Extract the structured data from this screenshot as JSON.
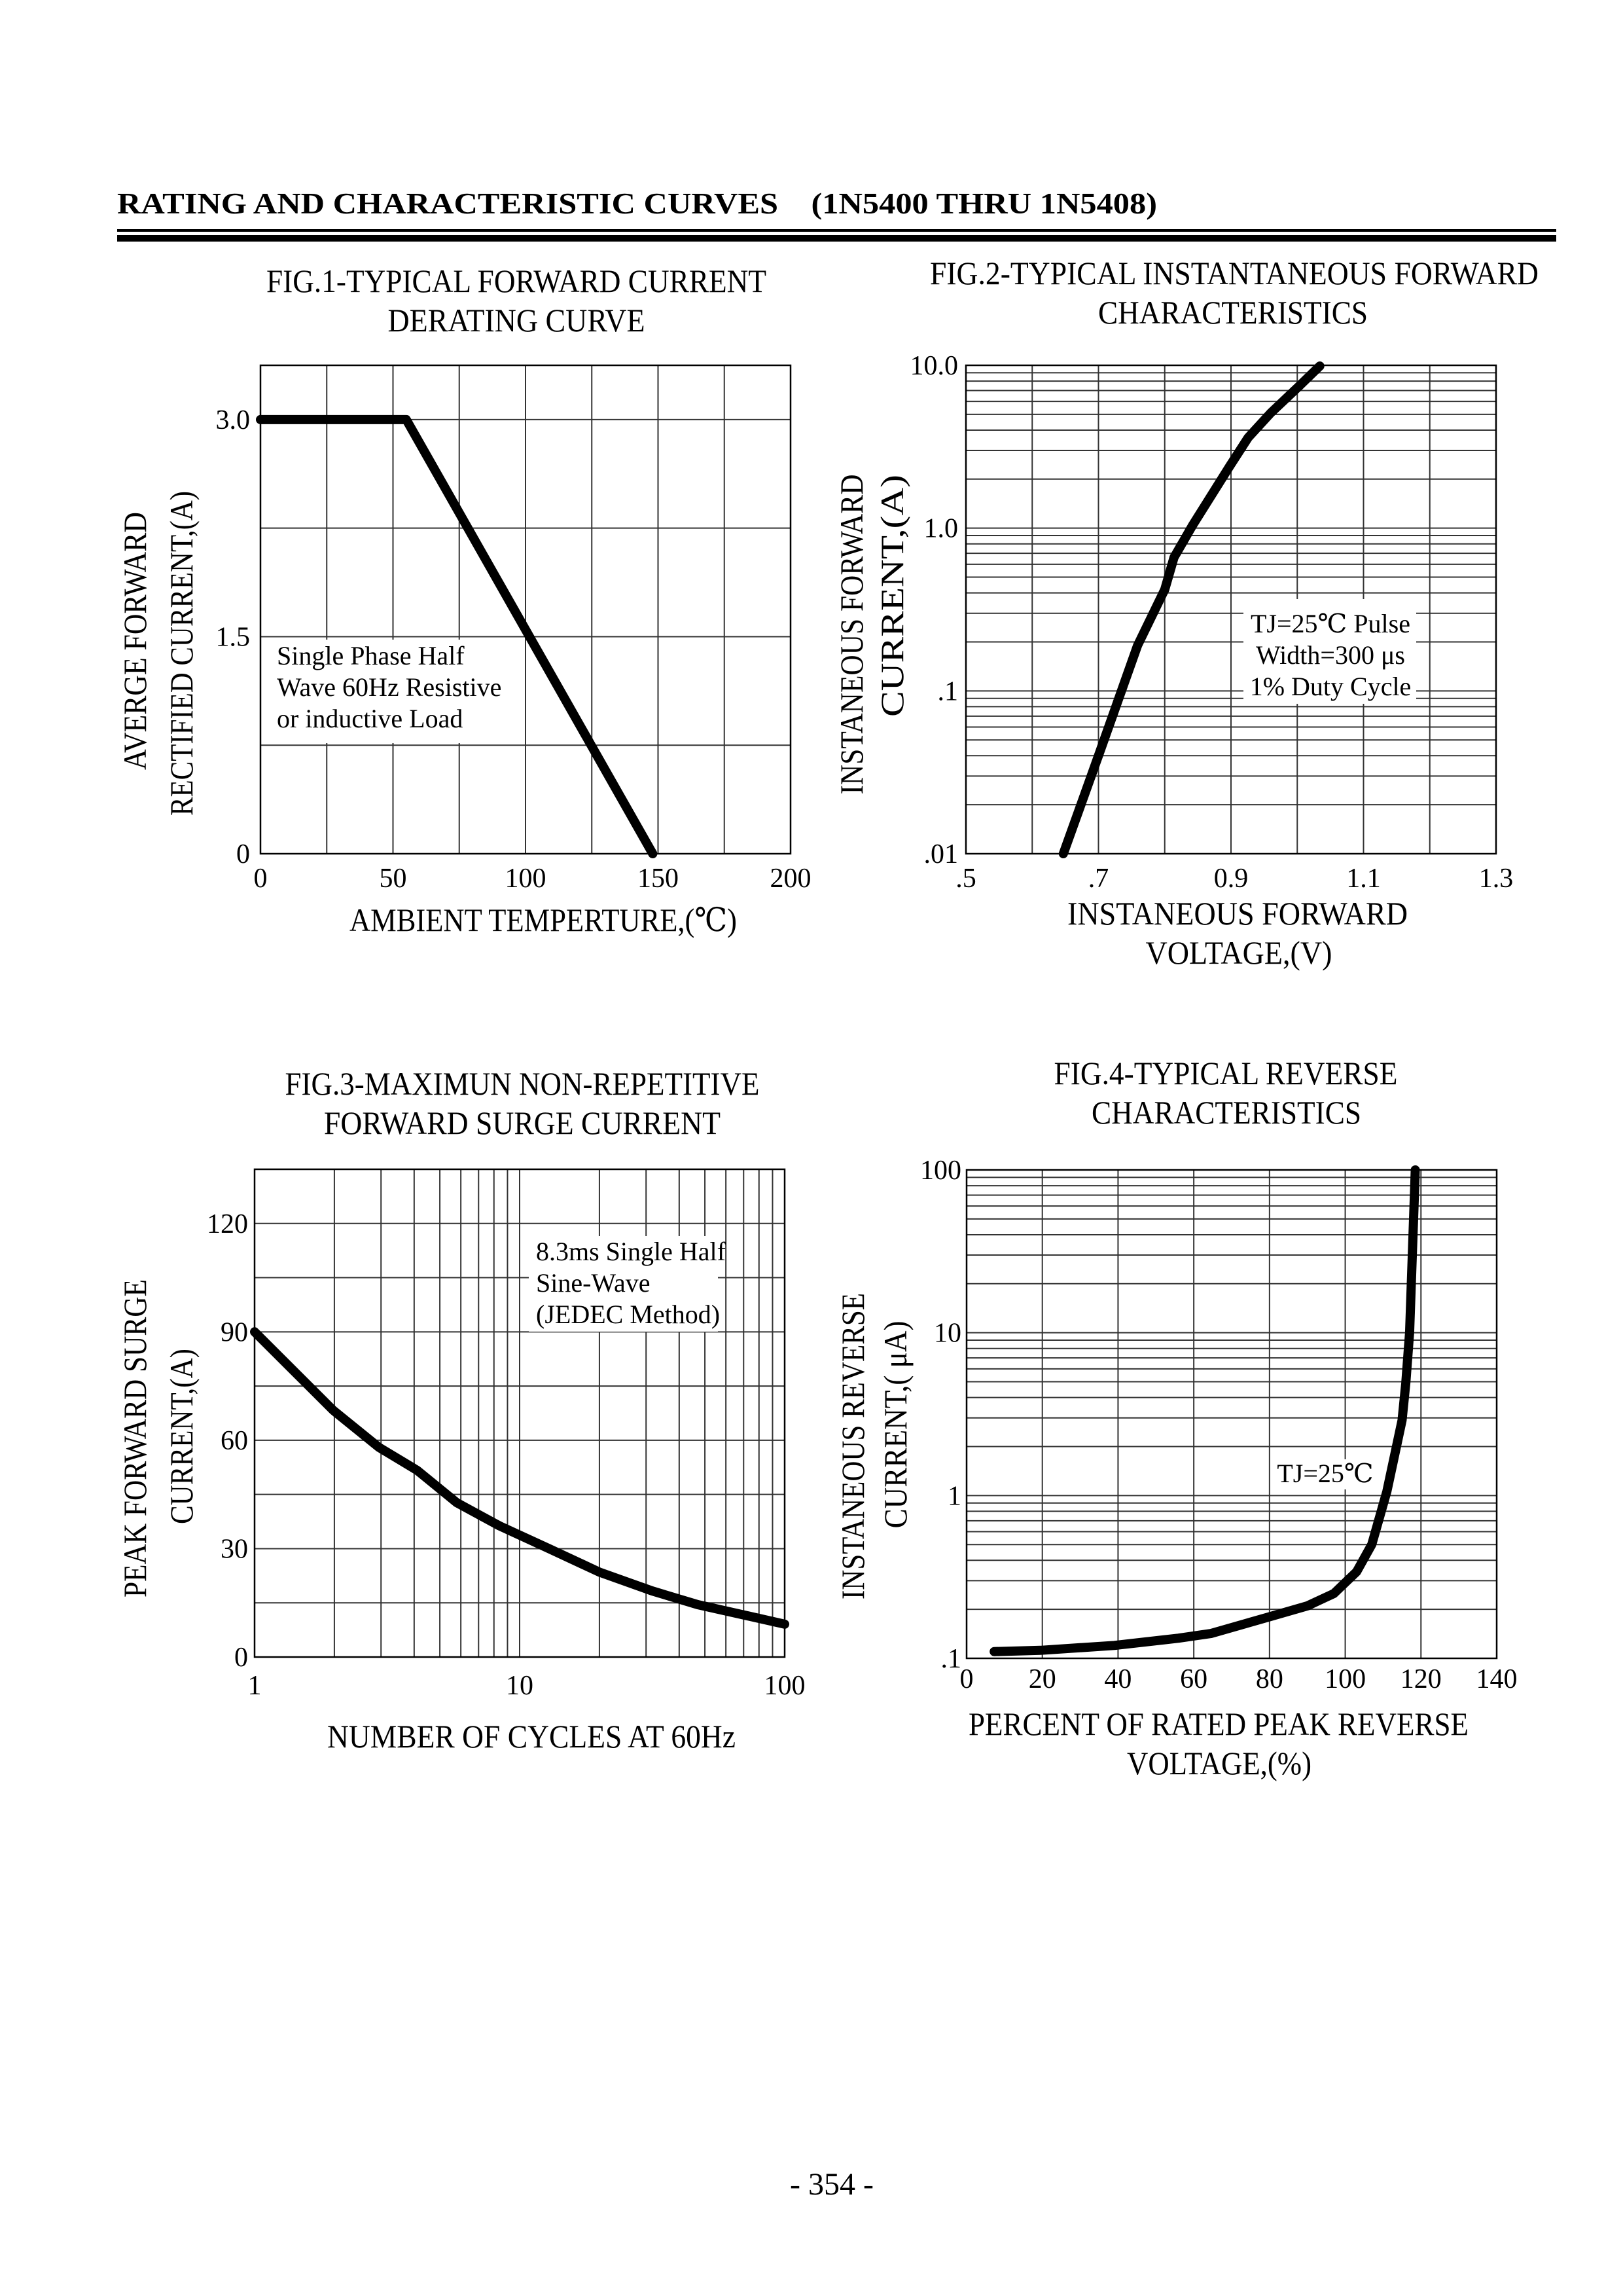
{
  "header": {
    "title": "RATING AND CHARACTERISTIC CURVES    (1N5400 THRU 1N5408)"
  },
  "footer": {
    "page_number": "- 354 -"
  },
  "chart_data": [
    {
      "type": "line",
      "title_lines": [
        "FIG.1-TYPICAL FORWARD CURRENT",
        "DERATING CURVE"
      ],
      "xlabel_lines": [
        "AMBIENT TEMPERTURE,(℃)"
      ],
      "ylabel_lines": [
        "AVERGE FORWARD",
        "RECTIFIED CURRENT,(A)"
      ],
      "annotation_lines": [
        "Single Phase Half",
        "Wave 60Hz Resistive",
        "or inductive Load"
      ],
      "x_scale": "linear",
      "y_scale": "linear",
      "xlim": [
        0,
        200
      ],
      "ylim": [
        0,
        3.375
      ],
      "x_ticks": [
        0,
        50,
        100,
        150,
        200
      ],
      "x_tick_labels": [
        "0",
        "50",
        "100",
        "150",
        "200"
      ],
      "y_ticks": [
        3,
        1.5,
        0
      ],
      "y_tick_labels": [
        "3.0",
        "1.5",
        "0"
      ],
      "grid": true,
      "series": [
        {
          "x": [
            0,
            55,
            148
          ],
          "y": [
            3.0,
            3.0,
            0
          ]
        }
      ]
    },
    {
      "type": "line",
      "title_lines": [
        "FIG.2-TYPICAL INSTANTANEOUS FORWARD",
        "CHARACTERISTICS"
      ],
      "xlabel_lines": [
        "INSTANEOUS FORWARD",
        "VOLTAGE,(V)"
      ],
      "ylabel_lines": [
        "INSTANEOUS FORWARD",
        "CURRENT,(A)"
      ],
      "annotation_lines": [
        "TJ=25℃ Pulse",
        "Width=300 μs",
        "1% Duty Cycle"
      ],
      "x_scale": "linear",
      "y_scale": "log",
      "xlim": [
        0.5,
        1.3
      ],
      "ylim": [
        0.01,
        10
      ],
      "x_ticks": [
        0.5,
        0.7,
        0.9,
        1.1,
        1.3
      ],
      "x_tick_labels": [
        ".5",
        ".7",
        "0.9",
        "1.1",
        "1.3"
      ],
      "y_ticks": [
        10,
        1,
        0.1,
        0.01
      ],
      "y_tick_labels": [
        "10.0",
        "1.0",
        ".1",
        ".01"
      ],
      "grid": true,
      "series": [
        {
          "x": [
            0.647,
            0.7,
            0.759,
            0.8,
            0.814,
            0.842,
            0.898,
            0.926,
            0.96,
            1.002,
            1.034
          ],
          "y": [
            0.01,
            0.04,
            0.19,
            0.42,
            0.66,
            1.04,
            2.4,
            3.6,
            5.1,
            7.4,
            9.9
          ]
        }
      ]
    },
    {
      "type": "line",
      "title_lines": [
        "FIG.3-MAXIMUN NON-REPETITIVE",
        "FORWARD SURGE CURRENT"
      ],
      "xlabel_lines": [
        "NUMBER OF CYCLES AT 60Hz"
      ],
      "ylabel_lines": [
        "PEAK FORWARD SURGE",
        "CURRENT,(A)"
      ],
      "annotation_lines": [
        "8.3ms Single Half",
        "Sine-Wave",
        "(JEDEC Method)"
      ],
      "x_scale": "log",
      "y_scale": "linear",
      "xlim": [
        1,
        100
      ],
      "ylim": [
        0,
        135
      ],
      "x_ticks": [
        1,
        10,
        100
      ],
      "x_tick_labels": [
        "1",
        "10",
        "100"
      ],
      "y_ticks": [
        120,
        90,
        60,
        30,
        0
      ],
      "y_tick_labels": [
        "120",
        "90",
        "60",
        "30",
        "0"
      ],
      "grid": true,
      "series": [
        {
          "x": [
            1,
            1.98,
            2.95,
            4.1,
            5.8,
            8.4,
            13,
            20,
            31.6,
            47,
            100
          ],
          "y": [
            90,
            68.3,
            58,
            51.7,
            42.7,
            36.3,
            29.9,
            23.5,
            18.3,
            14.5,
            9.1
          ]
        }
      ]
    },
    {
      "type": "line",
      "title_lines": [
        "FIG.4-TYPICAL REVERSE",
        "CHARACTERISTICS"
      ],
      "xlabel_lines": [
        "PERCENT OF RATED PEAK REVERSE",
        "VOLTAGE,(%)"
      ],
      "ylabel_lines": [
        "INSTANEOUS REVERSE",
        "CURRENT,( μA)"
      ],
      "annotation_lines": [
        "TJ=25℃"
      ],
      "x_scale": "linear",
      "y_scale": "log",
      "xlim": [
        0,
        140
      ],
      "ylim": [
        0.1,
        100
      ],
      "x_ticks": [
        0,
        20,
        40,
        60,
        80,
        100,
        120,
        140
      ],
      "x_tick_labels": [
        "0",
        "20",
        "40",
        "60",
        "80",
        "100",
        "120",
        "140"
      ],
      "y_ticks": [
        100,
        10,
        1,
        0.1
      ],
      "y_tick_labels": [
        "100",
        "10",
        "1",
        ".1"
      ],
      "grid": true,
      "series": [
        {
          "x": [
            7.3,
            19.5,
            39,
            56,
            64.5,
            80,
            90,
            97,
            103,
            107,
            111,
            115,
            116,
            117,
            118.5
          ],
          "y": [
            0.11,
            0.112,
            0.12,
            0.133,
            0.142,
            0.18,
            0.21,
            0.25,
            0.34,
            0.5,
            1.06,
            2.9,
            4.9,
            10,
            100
          ]
        }
      ]
    }
  ]
}
